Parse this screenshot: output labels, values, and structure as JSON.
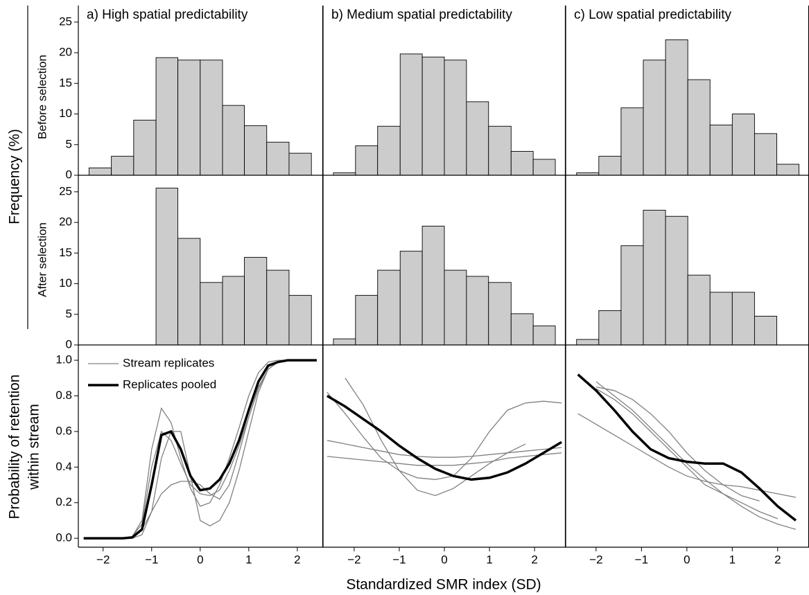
{
  "figure": {
    "ylabel_top": "Frequency (%)",
    "row_labels": [
      "Before selection",
      "After selection"
    ],
    "ylabel_bottom": [
      "Probability of retention",
      "within stream"
    ],
    "xlabel": "Standardized SMR index (SD)"
  },
  "chart_data": [
    {
      "type": "histogram",
      "title": "a) High spatial predictability",
      "color": "#cccccc",
      "bins": [
        -2.29,
        -1.83,
        -1.37,
        -0.91,
        -0.46,
        0,
        0.46,
        0.91,
        1.37,
        1.83,
        2.29
      ],
      "values": [
        1.2,
        3.1,
        9,
        19.2,
        18.8,
        18.8,
        11.4,
        8.1,
        5.4,
        3.6
      ],
      "xlim": [
        -2.51,
        2.53
      ],
      "ylim": [
        0,
        27.7
      ],
      "yticks": [
        0,
        5,
        10,
        15,
        20,
        25
      ]
    },
    {
      "type": "histogram",
      "title": "b) Medium spatial predictability",
      "color": "#cccccc",
      "bins": [
        -2.46,
        -1.97,
        -1.48,
        -0.98,
        -0.49,
        0,
        0.49,
        0.98,
        1.48,
        1.97,
        2.46
      ],
      "values": [
        0.4,
        4.8,
        8,
        19.8,
        19.3,
        18.8,
        12,
        8,
        3.9,
        2.6
      ],
      "xlim": [
        -2.69,
        2.69
      ],
      "ylim": [
        0,
        27.7
      ]
    },
    {
      "type": "histogram",
      "title": "c) Low spatial predictability",
      "color": "#cccccc",
      "bins": [
        -2.43,
        -1.94,
        -1.45,
        -0.96,
        -0.47,
        0.02,
        0.51,
        1,
        1.49,
        1.98,
        2.47
      ],
      "values": [
        0.4,
        3.1,
        11,
        18.8,
        22.1,
        15.6,
        8.2,
        10,
        6.8,
        1.8
      ],
      "xlim": [
        -2.67,
        2.69
      ],
      "ylim": [
        0,
        27.7
      ]
    },
    {
      "type": "histogram",
      "color": "#cccccc",
      "bins": [
        -2.29,
        -1.83,
        -1.37,
        -0.91,
        -0.46,
        0,
        0.46,
        0.91,
        1.37,
        1.83,
        2.29
      ],
      "values": [
        0,
        0,
        0,
        25.6,
        17.4,
        10.2,
        11.2,
        14.3,
        12.2,
        8.1
      ],
      "xlim": [
        -2.51,
        2.53
      ],
      "ylim": [
        0,
        27.7
      ],
      "yticks": [
        0,
        5,
        10,
        15,
        20,
        25
      ]
    },
    {
      "type": "histogram",
      "color": "#cccccc",
      "bins": [
        -2.46,
        -1.97,
        -1.48,
        -0.98,
        -0.49,
        0,
        0.49,
        0.98,
        1.48,
        1.97,
        2.46
      ],
      "values": [
        1,
        8.1,
        12.2,
        15.3,
        19.4,
        12.2,
        11.2,
        10.2,
        5.1,
        3.1
      ],
      "xlim": [
        -2.69,
        2.69
      ],
      "ylim": [
        0,
        27.7
      ]
    },
    {
      "type": "histogram",
      "color": "#cccccc",
      "bins": [
        -2.43,
        -1.94,
        -1.45,
        -0.96,
        -0.47,
        0.02,
        0.51,
        1,
        1.49,
        1.98,
        2.47
      ],
      "values": [
        0.9,
        5.6,
        16.2,
        22,
        21,
        11.4,
        8.6,
        8.6,
        4.7,
        0
      ],
      "xlim": [
        -2.67,
        2.69
      ],
      "ylim": [
        0,
        27.7
      ]
    },
    {
      "type": "line",
      "x": [
        -2.4,
        -2,
        -1.6,
        -1.4,
        -1.2,
        -1,
        -0.8,
        -0.6,
        -0.4,
        -0.2,
        0,
        0.2,
        0.4,
        0.6,
        0.8,
        1,
        1.2,
        1.4,
        1.6,
        1.8,
        2,
        2.4
      ],
      "series": [
        {
          "name": "Stream replicates",
          "color": "#808080",
          "values": [
            0,
            0,
            0,
            0.01,
            0.1,
            0.5,
            0.73,
            0.65,
            0.45,
            0.28,
            0.18,
            0.2,
            0.3,
            0.45,
            0.62,
            0.8,
            0.93,
            0.99,
            1,
            1,
            1,
            1
          ]
        },
        {
          "color": "#808080",
          "values": [
            0,
            0,
            0,
            0,
            0.02,
            0.15,
            0.45,
            0.6,
            0.6,
            0.35,
            0.1,
            0.07,
            0.1,
            0.2,
            0.38,
            0.6,
            0.82,
            0.95,
            0.99,
            1,
            1,
            1
          ]
        },
        {
          "color": "#808080",
          "values": [
            0,
            0,
            0,
            0.01,
            0.05,
            0.15,
            0.25,
            0.3,
            0.32,
            0.32,
            0.3,
            0.25,
            0.22,
            0.3,
            0.48,
            0.68,
            0.85,
            0.95,
            0.99,
            1,
            1,
            1
          ]
        },
        {
          "color": "#808080",
          "values": [
            0,
            0,
            0,
            0.01,
            0.08,
            0.4,
            0.6,
            0.55,
            0.42,
            0.3,
            0.25,
            0.24,
            0.27,
            0.38,
            0.52,
            0.68,
            0.84,
            0.95,
            0.99,
            1,
            1,
            1
          ]
        },
        {
          "name": "Replicates pooled",
          "color": "#000000",
          "values": [
            0,
            0,
            0,
            0.005,
            0.05,
            0.3,
            0.58,
            0.6,
            0.5,
            0.35,
            0.27,
            0.28,
            0.33,
            0.42,
            0.55,
            0.72,
            0.88,
            0.97,
            0.99,
            1,
            1,
            1
          ]
        }
      ],
      "xlim": [
        -2.51,
        2.53
      ],
      "ylim": [
        -0.05,
        1.086
      ],
      "yticks": [
        {
          "value": 0,
          "label": "0.0"
        },
        0.2,
        0.4,
        0.6,
        0.8,
        {
          "value": 1,
          "label": "1.0"
        }
      ],
      "xticks": [
        {
          "value": -2,
          "label": "−2"
        },
        {
          "value": -1,
          "label": "−1"
        },
        0,
        1,
        2
      ]
    },
    {
      "type": "line",
      "x": [
        -2.6,
        -2.2,
        -1.8,
        -1.4,
        -1,
        -0.6,
        -0.2,
        0.2,
        0.6,
        1,
        1.4,
        1.8,
        2.2,
        2.6
      ],
      "series": [
        {
          "color": "#808080",
          "values": [
            null,
            0.9,
            0.75,
            0.55,
            0.38,
            0.27,
            0.24,
            0.28,
            0.35,
            0.42,
            0.48,
            0.53,
            null,
            null
          ]
        },
        {
          "color": "#808080",
          "values": [
            0.82,
            0.7,
            0.57,
            0.45,
            0.38,
            0.34,
            0.33,
            0.35,
            0.45,
            0.6,
            0.72,
            0.76,
            0.77,
            0.76
          ]
        },
        {
          "color": "#808080",
          "values": [
            0.55,
            0.53,
            0.51,
            0.49,
            0.47,
            0.46,
            0.455,
            0.455,
            0.46,
            0.47,
            0.48,
            0.49,
            0.5,
            0.51
          ]
        },
        {
          "color": "#808080",
          "values": [
            0.46,
            0.45,
            0.44,
            0.43,
            0.42,
            0.41,
            0.41,
            0.41,
            0.42,
            0.43,
            0.45,
            0.46,
            0.47,
            0.48
          ]
        },
        {
          "color": "#000000",
          "values": [
            0.8,
            0.74,
            0.67,
            0.6,
            0.52,
            0.45,
            0.39,
            0.35,
            0.33,
            0.34,
            0.37,
            0.42,
            0.48,
            0.54
          ]
        }
      ],
      "xlim": [
        -2.69,
        2.69
      ],
      "ylim": [
        -0.05,
        1.086
      ],
      "xticks": [
        {
          "value": -2,
          "label": "−2"
        },
        {
          "value": -1,
          "label": "−1"
        },
        0,
        1,
        2
      ]
    },
    {
      "type": "line",
      "x": [
        -2.4,
        -2,
        -1.6,
        -1.2,
        -0.8,
        -0.4,
        0,
        0.4,
        0.8,
        1.2,
        1.6,
        2,
        2.4
      ],
      "series": [
        {
          "color": "#808080",
          "values": [
            0.7,
            0.64,
            0.58,
            0.52,
            0.46,
            0.4,
            0.35,
            0.32,
            0.3,
            0.29,
            0.27,
            0.25,
            0.23
          ]
        },
        {
          "color": "#808080",
          "values": [
            null,
            0.88,
            0.8,
            0.72,
            0.62,
            0.52,
            0.42,
            0.33,
            0.25,
            0.18,
            0.12,
            0.08,
            0.05
          ]
        },
        {
          "color": "#808080",
          "values": [
            null,
            0.85,
            0.83,
            0.78,
            0.7,
            0.6,
            0.48,
            0.38,
            0.3,
            0.24,
            0.21,
            null,
            null
          ]
        },
        {
          "color": "#808080",
          "values": [
            null,
            0.84,
            0.78,
            0.7,
            0.6,
            0.5,
            0.4,
            0.3,
            0.25,
            0.2,
            0.15,
            0.11,
            null
          ]
        },
        {
          "color": "#000000",
          "values": [
            0.92,
            0.83,
            0.72,
            0.6,
            0.5,
            0.45,
            0.43,
            0.42,
            0.42,
            0.37,
            0.28,
            0.18,
            0.1
          ]
        }
      ],
      "xlim": [
        -2.67,
        2.69
      ],
      "ylim": [
        -0.05,
        1.086
      ],
      "xticks": [
        {
          "value": -2,
          "label": "−2"
        },
        {
          "value": -1,
          "label": "−1"
        },
        0,
        1,
        2
      ]
    }
  ]
}
